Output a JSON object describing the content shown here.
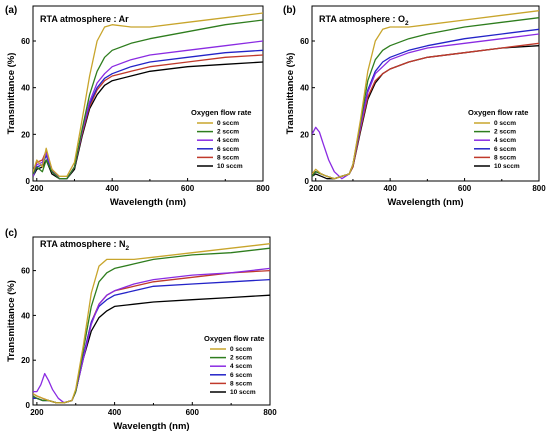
{
  "chart_data": [
    {
      "type": "line",
      "panel_label": "(a)",
      "title": "RTA atmosphere : Ar",
      "title_sub": "",
      "xlabel": "Wavelength (nm)",
      "ylabel": "Transmittance (%)",
      "xlim": [
        190,
        800
      ],
      "ylim": [
        0,
        75
      ],
      "xticks": [
        "200",
        "400",
        "600",
        "800"
      ],
      "yticks": [
        "0",
        "20",
        "40",
        "60"
      ],
      "legend_title": "Oxygen flow rate",
      "legend_position": "right",
      "grid": false,
      "series": [
        {
          "name": "0 sccm",
          "color": "#c8a52c",
          "x": [
            190,
            200,
            215,
            225,
            240,
            260,
            280,
            300,
            320,
            340,
            360,
            380,
            400,
            450,
            500,
            600,
            700,
            800
          ],
          "y": [
            4,
            9,
            6,
            14,
            5,
            2,
            2,
            8,
            26,
            45,
            60,
            66,
            67,
            66,
            66,
            68,
            70,
            72
          ]
        },
        {
          "name": "2 sccm",
          "color": "#2e7d1e",
          "x": [
            190,
            200,
            215,
            225,
            240,
            260,
            280,
            300,
            320,
            340,
            360,
            380,
            400,
            450,
            500,
            600,
            700,
            800
          ],
          "y": [
            3,
            6,
            4,
            9,
            4,
            1,
            1,
            6,
            22,
            37,
            47,
            53,
            56,
            59,
            61,
            64,
            67,
            69
          ]
        },
        {
          "name": "4 sccm",
          "color": "#8a2be2",
          "x": [
            190,
            200,
            215,
            225,
            240,
            260,
            280,
            300,
            320,
            340,
            360,
            380,
            400,
            450,
            500,
            600,
            700,
            800
          ],
          "y": [
            2,
            7,
            8,
            12,
            5,
            1,
            1,
            6,
            21,
            34,
            42,
            46,
            49,
            52,
            54,
            56,
            58,
            60
          ]
        },
        {
          "name": "6 sccm",
          "color": "#2323c8",
          "x": [
            190,
            200,
            215,
            225,
            240,
            260,
            280,
            300,
            320,
            340,
            360,
            380,
            400,
            450,
            500,
            600,
            700,
            800
          ],
          "y": [
            2,
            6,
            7,
            11,
            4,
            1,
            1,
            6,
            21,
            33,
            40,
            44,
            46,
            49,
            51,
            53,
            55,
            56
          ]
        },
        {
          "name": "8 sccm",
          "color": "#c0392b",
          "x": [
            190,
            200,
            215,
            225,
            240,
            260,
            280,
            300,
            320,
            340,
            360,
            380,
            400,
            450,
            500,
            600,
            700,
            800
          ],
          "y": [
            3,
            8,
            9,
            13,
            5,
            1,
            1,
            6,
            20,
            32,
            39,
            43,
            45,
            47,
            49,
            51,
            53,
            54
          ]
        },
        {
          "name": "10 sccm",
          "color": "#000000",
          "x": [
            190,
            200,
            215,
            225,
            240,
            260,
            280,
            300,
            320,
            340,
            360,
            380,
            400,
            450,
            500,
            600,
            700,
            800
          ],
          "y": [
            2,
            5,
            6,
            9,
            3,
            1,
            1,
            5,
            19,
            31,
            37,
            41,
            43,
            45,
            47,
            49,
            50,
            51
          ]
        }
      ]
    },
    {
      "type": "line",
      "panel_label": "(b)",
      "title": "RTA atmosphere : O",
      "title_sub": "2",
      "xlabel": "Wavelength (nm)",
      "ylabel": "Transmittance (%)",
      "xlim": [
        190,
        800
      ],
      "ylim": [
        0,
        75
      ],
      "xticks": [
        "200",
        "400",
        "600",
        "800"
      ],
      "yticks": [
        "0",
        "20",
        "40",
        "60"
      ],
      "legend_title": "Oxygen flow rate",
      "legend_position": "right",
      "grid": false,
      "series": [
        {
          "name": "0 sccm",
          "color": "#c8a52c",
          "x": [
            190,
            200,
            215,
            230,
            250,
            270,
            290,
            300,
            320,
            340,
            360,
            380,
            400,
            450,
            500,
            600,
            700,
            800
          ],
          "y": [
            3,
            5,
            3,
            2,
            1,
            2,
            3,
            7,
            26,
            47,
            60,
            65,
            66,
            66,
            67,
            69,
            71,
            73
          ]
        },
        {
          "name": "2 sccm",
          "color": "#2e7d1e",
          "x": [
            190,
            200,
            215,
            230,
            250,
            270,
            290,
            300,
            320,
            340,
            360,
            380,
            400,
            450,
            500,
            600,
            700,
            800
          ],
          "y": [
            2,
            4,
            3,
            2,
            1,
            2,
            3,
            7,
            25,
            43,
            52,
            56,
            58,
            61,
            63,
            66,
            68,
            70
          ]
        },
        {
          "name": "4 sccm",
          "color": "#8a2be2",
          "x": [
            190,
            200,
            210,
            220,
            235,
            250,
            270,
            290,
            300,
            320,
            340,
            360,
            380,
            400,
            450,
            500,
            600,
            700,
            800
          ],
          "y": [
            20,
            23,
            21,
            16,
            9,
            4,
            1,
            3,
            7,
            23,
            38,
            46,
            49,
            52,
            55,
            57,
            59,
            61,
            63
          ]
        },
        {
          "name": "6 sccm",
          "color": "#2323c8",
          "x": [
            190,
            200,
            215,
            230,
            250,
            270,
            290,
            300,
            320,
            340,
            360,
            380,
            400,
            450,
            500,
            600,
            700,
            800
          ],
          "y": [
            2,
            4,
            3,
            2,
            1,
            2,
            3,
            7,
            24,
            39,
            47,
            51,
            53,
            56,
            58,
            61,
            63,
            65
          ]
        },
        {
          "name": "8 sccm",
          "color": "#c0392b",
          "x": [
            190,
            200,
            215,
            230,
            250,
            270,
            290,
            300,
            320,
            340,
            360,
            380,
            400,
            450,
            500,
            600,
            700,
            800
          ],
          "y": [
            3,
            4,
            3,
            2,
            1,
            2,
            3,
            6,
            22,
            36,
            43,
            46,
            48,
            51,
            53,
            55,
            57,
            59
          ]
        },
        {
          "name": "10 sccm",
          "color": "#000000",
          "x": [
            190,
            200,
            215,
            230,
            250,
            270,
            290,
            300,
            320,
            340,
            360,
            380,
            400,
            450,
            500,
            600,
            700,
            800
          ],
          "y": [
            2,
            3,
            2,
            1,
            1,
            2,
            3,
            6,
            21,
            35,
            42,
            46,
            48,
            51,
            53,
            55,
            57,
            58
          ]
        }
      ]
    },
    {
      "type": "line",
      "panel_label": "(c)",
      "title": "RTA atmosphere : N",
      "title_sub": "2",
      "xlabel": "Wavelength (nm)",
      "ylabel": "Transmittance (%)",
      "xlim": [
        190,
        800
      ],
      "ylim": [
        0,
        75
      ],
      "xticks": [
        "200",
        "400",
        "600",
        "800"
      ],
      "yticks": [
        "0",
        "20",
        "40",
        "60"
      ],
      "legend_title": "Oxygen flow rate",
      "legend_position": "right",
      "grid": false,
      "series": [
        {
          "name": "0 sccm",
          "color": "#c8a52c",
          "x": [
            190,
            200,
            215,
            230,
            250,
            270,
            290,
            300,
            320,
            340,
            360,
            380,
            400,
            450,
            500,
            600,
            700,
            800
          ],
          "y": [
            5,
            4,
            3,
            2,
            1,
            1,
            2,
            7,
            27,
            50,
            62,
            65,
            65,
            65,
            66,
            68,
            70,
            72
          ]
        },
        {
          "name": "2 sccm",
          "color": "#2e7d1e",
          "x": [
            190,
            200,
            215,
            230,
            250,
            270,
            290,
            300,
            320,
            340,
            360,
            380,
            400,
            450,
            500,
            600,
            700,
            800
          ],
          "y": [
            4,
            3,
            2,
            2,
            1,
            1,
            2,
            6,
            25,
            44,
            55,
            59,
            61,
            63,
            65,
            67,
            68,
            70
          ]
        },
        {
          "name": "4 sccm",
          "color": "#8a2be2",
          "x": [
            190,
            200,
            210,
            220,
            230,
            240,
            255,
            270,
            290,
            300,
            320,
            340,
            360,
            380,
            400,
            450,
            500,
            600,
            700,
            800
          ],
          "y": [
            6,
            6,
            9,
            14,
            11,
            7,
            3,
            1,
            2,
            6,
            21,
            36,
            45,
            49,
            51,
            54,
            56,
            58,
            59,
            61
          ]
        },
        {
          "name": "6 sccm",
          "color": "#2323c8",
          "x": [
            190,
            200,
            215,
            230,
            250,
            270,
            290,
            300,
            320,
            340,
            360,
            380,
            400,
            450,
            500,
            600,
            700,
            800
          ],
          "y": [
            3,
            3,
            2,
            2,
            1,
            1,
            2,
            6,
            22,
            37,
            44,
            47,
            49,
            51,
            53,
            54,
            55,
            56
          ]
        },
        {
          "name": "8 sccm",
          "color": "#c0392b",
          "x": [
            190,
            200,
            215,
            230,
            250,
            270,
            290,
            300,
            320,
            340,
            360,
            380,
            400,
            450,
            500,
            600,
            700,
            800
          ],
          "y": [
            5,
            4,
            3,
            2,
            1,
            1,
            2,
            6,
            22,
            37,
            45,
            49,
            51,
            53,
            55,
            57,
            59,
            60
          ]
        },
        {
          "name": "10 sccm",
          "color": "#000000",
          "x": [
            190,
            200,
            215,
            230,
            250,
            270,
            290,
            300,
            320,
            340,
            360,
            380,
            400,
            450,
            500,
            600,
            700,
            800
          ],
          "y": [
            3,
            3,
            2,
            2,
            1,
            1,
            2,
            6,
            21,
            33,
            39,
            42,
            44,
            45,
            46,
            47,
            48,
            49
          ]
        }
      ]
    }
  ]
}
